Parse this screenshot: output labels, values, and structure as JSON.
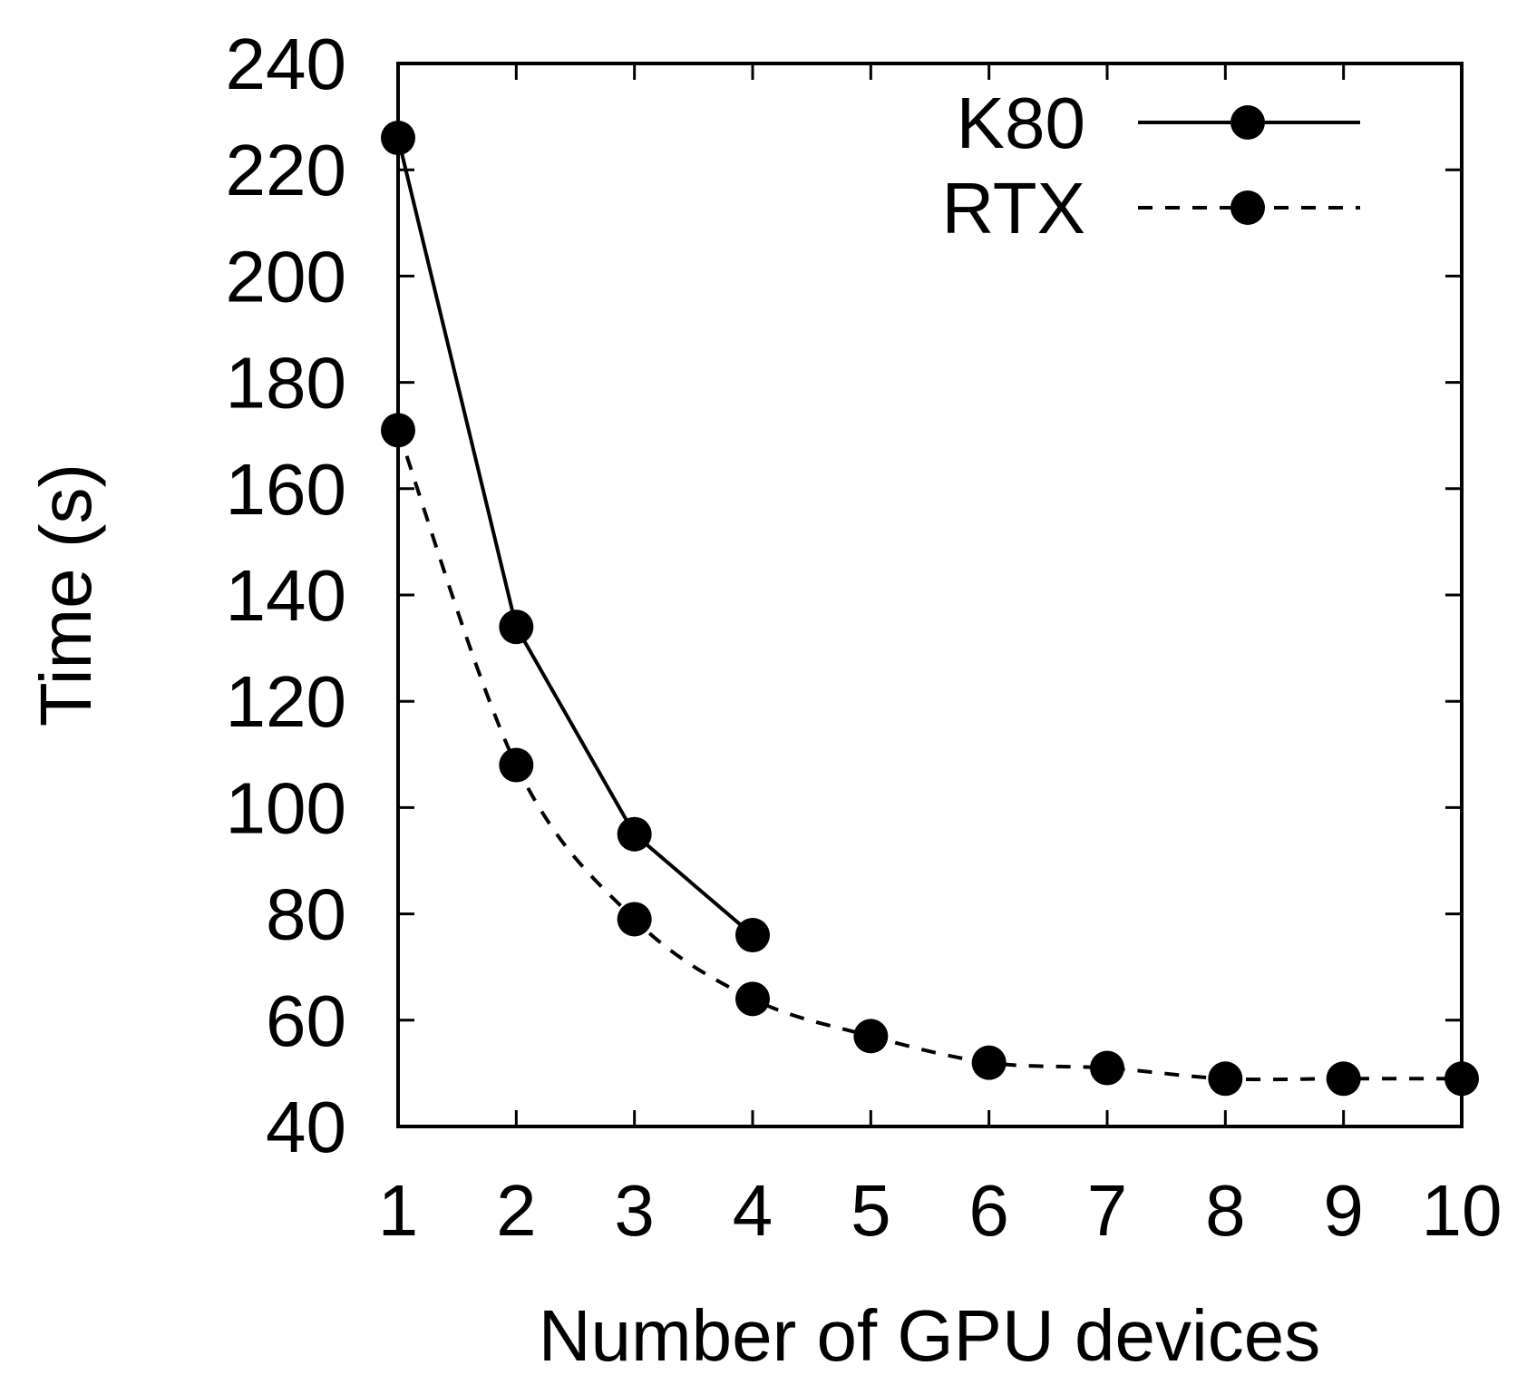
{
  "chart_data": {
    "type": "line",
    "title": "",
    "xlabel": "Number of GPU devices",
    "ylabel": "Time (s)",
    "xlim": [
      1,
      10
    ],
    "ylim": [
      40,
      240
    ],
    "xticks": [
      1,
      2,
      3,
      4,
      5,
      6,
      7,
      8,
      9,
      10
    ],
    "yticks": [
      40,
      60,
      80,
      100,
      120,
      140,
      160,
      180,
      200,
      220,
      240
    ],
    "grid": false,
    "legend_position": "top-right",
    "series": [
      {
        "name": "K80",
        "line_style": "solid",
        "color": "#000000",
        "x": [
          1,
          2,
          3,
          4
        ],
        "y": [
          226,
          134,
          95,
          76
        ]
      },
      {
        "name": "RTX",
        "line_style": "dashed",
        "color": "#000000",
        "x": [
          1,
          2,
          3,
          4,
          5,
          6,
          7,
          8,
          9,
          10
        ],
        "y": [
          171,
          108,
          79,
          64,
          57,
          52,
          51,
          49,
          49,
          49
        ]
      }
    ]
  }
}
